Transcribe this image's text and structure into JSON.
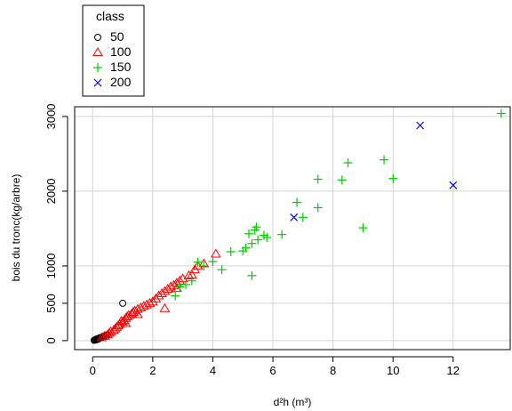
{
  "chart_data": {
    "type": "scatter",
    "xlabel": "d²h (m³)",
    "ylabel": "bois du tronc(kg/arbre)",
    "xlim": [
      -0.6,
      13.9
    ],
    "ylim": [
      -120,
      3130
    ],
    "x_ticks": [
      0,
      2,
      4,
      6,
      8,
      10,
      12
    ],
    "y_ticks": [
      0,
      500,
      1000,
      2000,
      3000
    ],
    "x_tick_labels": [
      "0",
      "2",
      "4",
      "6",
      "8",
      "10",
      "12"
    ],
    "y_tick_labels": [
      "0",
      "500",
      "1000",
      "2000",
      "3000"
    ],
    "grid": true,
    "legend": {
      "title": "class",
      "position": "top-left",
      "entries": [
        {
          "label": "50",
          "marker": "circle",
          "color": "#000000"
        },
        {
          "label": "100",
          "marker": "triangle",
          "color": "#ff0000"
        },
        {
          "label": "150",
          "marker": "plus",
          "color": "#00cc00"
        },
        {
          "label": "200",
          "marker": "cross",
          "color": "#0000ff"
        }
      ]
    },
    "series": [
      {
        "name": "50",
        "marker": "circle",
        "color": "#000000",
        "points": [
          [
            0.05,
            5
          ],
          [
            0.08,
            10
          ],
          [
            0.1,
            15
          ],
          [
            0.12,
            20
          ],
          [
            0.15,
            25
          ],
          [
            0.18,
            22
          ],
          [
            0.2,
            30
          ],
          [
            0.22,
            35
          ],
          [
            0.25,
            40
          ],
          [
            0.28,
            38
          ],
          [
            0.3,
            45
          ],
          [
            0.35,
            55
          ],
          [
            0.4,
            65
          ],
          [
            0.45,
            75
          ],
          [
            0.5,
            80
          ],
          [
            0.12,
            12
          ],
          [
            0.16,
            18
          ],
          [
            0.2,
            24
          ],
          [
            1.0,
            500
          ]
        ]
      },
      {
        "name": "100",
        "marker": "triangle",
        "color": "#ff0000",
        "points": [
          [
            0.3,
            40
          ],
          [
            0.4,
            60
          ],
          [
            0.5,
            80
          ],
          [
            0.55,
            100
          ],
          [
            0.6,
            120
          ],
          [
            0.7,
            140
          ],
          [
            0.75,
            160
          ],
          [
            0.8,
            180
          ],
          [
            0.85,
            200
          ],
          [
            0.9,
            220
          ],
          [
            1.0,
            250
          ],
          [
            1.05,
            270
          ],
          [
            1.1,
            300
          ],
          [
            1.15,
            320
          ],
          [
            1.2,
            340
          ],
          [
            1.3,
            360
          ],
          [
            1.35,
            380
          ],
          [
            1.4,
            400
          ],
          [
            1.5,
            420
          ],
          [
            1.6,
            440
          ],
          [
            1.7,
            460
          ],
          [
            1.8,
            480
          ],
          [
            1.9,
            500
          ],
          [
            2.0,
            520
          ],
          [
            2.1,
            560
          ],
          [
            2.2,
            600
          ],
          [
            2.3,
            630
          ],
          [
            2.4,
            660
          ],
          [
            2.5,
            690
          ],
          [
            2.6,
            720
          ],
          [
            2.7,
            740
          ],
          [
            2.8,
            770
          ],
          [
            2.9,
            800
          ],
          [
            3.0,
            830
          ],
          [
            3.2,
            870
          ],
          [
            3.4,
            950
          ],
          [
            3.5,
            1000
          ],
          [
            3.7,
            1030
          ],
          [
            4.1,
            1160
          ],
          [
            2.4,
            430
          ],
          [
            1.5,
            350
          ],
          [
            2.8,
            700
          ],
          [
            3.3,
            880
          ],
          [
            1.1,
            230
          ],
          [
            0.95,
            260
          ]
        ]
      },
      {
        "name": "150",
        "marker": "plus",
        "color": "#00cc00",
        "points": [
          [
            2.75,
            600
          ],
          [
            2.9,
            720
          ],
          [
            3.1,
            750
          ],
          [
            3.3,
            800
          ],
          [
            3.5,
            1050
          ],
          [
            3.7,
            1000
          ],
          [
            4.0,
            1060
          ],
          [
            4.3,
            950
          ],
          [
            4.6,
            1190
          ],
          [
            5.0,
            1200
          ],
          [
            5.1,
            1240
          ],
          [
            5.2,
            1430
          ],
          [
            5.3,
            1300
          ],
          [
            5.4,
            1480
          ],
          [
            5.45,
            1520
          ],
          [
            5.5,
            1350
          ],
          [
            5.7,
            1410
          ],
          [
            5.8,
            1380
          ],
          [
            6.3,
            1420
          ],
          [
            6.8,
            1850
          ],
          [
            7.0,
            1650
          ],
          [
            7.5,
            1780
          ],
          [
            7.5,
            2160
          ],
          [
            8.3,
            2150
          ],
          [
            8.5,
            2380
          ],
          [
            9.0,
            1510
          ],
          [
            9.7,
            2420
          ],
          [
            10.0,
            2170
          ],
          [
            5.3,
            870
          ],
          [
            13.6,
            3040
          ]
        ]
      },
      {
        "name": "200",
        "marker": "cross",
        "color": "#0000ff",
        "points": [
          [
            6.7,
            1650
          ],
          [
            10.9,
            2880
          ],
          [
            12.0,
            2080
          ]
        ]
      }
    ]
  }
}
